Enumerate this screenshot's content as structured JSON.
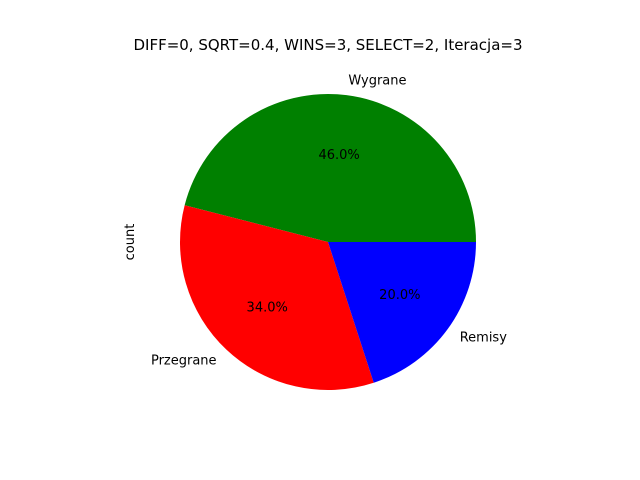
{
  "chart_data": {
    "type": "pie",
    "title": "DIFF=0, SQRT=0.4, WINS=3, SELECT=2, Iteracja=3",
    "ylabel": "count",
    "labels": [
      "Wygrane",
      "Przegrane",
      "Remisy"
    ],
    "values": [
      46.0,
      34.0,
      20.0
    ],
    "percent_labels": [
      "46.0%",
      "34.0%",
      "20.0%"
    ],
    "colors": [
      "#008000",
      "#ff0000",
      "#0000ff"
    ],
    "start_angle_deg": 0,
    "direction": "counterclockwise"
  }
}
